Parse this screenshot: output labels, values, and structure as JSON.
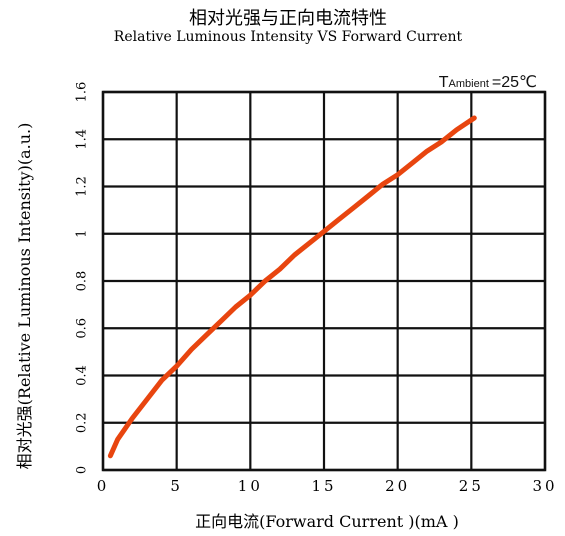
{
  "chart_data": {
    "type": "line",
    "title": "相对光强与正向电流特性",
    "subtitle": "Relative Luminous Intensity VS Forward Current",
    "xlabel": "正向电流(Forward Current )(mA )",
    "ylabel": "相对光强(Relative Luminous Intensity)(a.u.)",
    "annotation": {
      "prefix": "T",
      "subscript": "Ambient",
      "value": "=25℃"
    },
    "xlim": [
      0,
      30
    ],
    "ylim": [
      0,
      1.6
    ],
    "x_ticks": [
      0,
      5,
      10,
      15,
      20,
      25,
      30
    ],
    "x_tick_labels": [
      "0",
      "5",
      "10",
      "15",
      "20",
      "25",
      "30"
    ],
    "y_ticks": [
      0,
      0.2,
      0.4,
      0.6,
      0.8,
      1.0,
      1.2,
      1.4,
      1.6
    ],
    "y_tick_labels": [
      "0",
      "0.2",
      "0.4",
      "0.6",
      "0.8",
      "1",
      "1.2",
      "1.4",
      "1.6"
    ],
    "grid": true,
    "series": [
      {
        "color": "#e8450f",
        "x": [
          0.5,
          1,
          2,
          3,
          4,
          5,
          6,
          7,
          8,
          9,
          10,
          11,
          12,
          13,
          14,
          15,
          16,
          17,
          18,
          19,
          20,
          21,
          22,
          23,
          24,
          25.2
        ],
        "y": [
          0.06,
          0.13,
          0.22,
          0.3,
          0.38,
          0.44,
          0.51,
          0.57,
          0.63,
          0.69,
          0.74,
          0.8,
          0.85,
          0.91,
          0.96,
          1.01,
          1.06,
          1.11,
          1.16,
          1.21,
          1.25,
          1.3,
          1.35,
          1.39,
          1.44,
          1.49
        ]
      }
    ]
  }
}
